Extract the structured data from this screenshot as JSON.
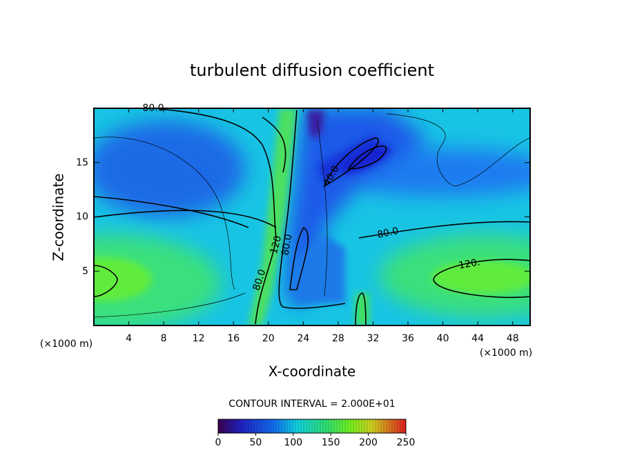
{
  "chart_data": {
    "type": "contour",
    "title": "turbulent diffusion coefficient",
    "x_label": "X-coordinate",
    "y_label": "Z-coordinate",
    "x_unit_labels": [
      "(×1000 m)",
      "(×1000 m)"
    ],
    "xlim": [
      0,
      50
    ],
    "xticks": [
      4,
      8,
      12,
      16,
      20,
      24,
      28,
      32,
      36,
      40,
      44,
      48
    ],
    "ylim": [
      0,
      20
    ],
    "yticks": [
      5,
      10,
      15
    ],
    "contour_labels": [
      {
        "value": 80,
        "label": "80.0"
      },
      {
        "value": 40,
        "label": "40.0"
      },
      {
        "value": 80,
        "label": "80.0"
      },
      {
        "value": 120,
        "label": "120."
      },
      {
        "value": 120,
        "label": "120"
      },
      {
        "value": 80,
        "label": "80.0"
      },
      {
        "value": 80,
        "label": "80.0"
      }
    ],
    "contour_interval_label": "CONTOUR INTERVAL = 2.000E+01",
    "colorbar": {
      "lim": [
        0,
        250
      ],
      "ticks": [
        0,
        50,
        100,
        150,
        200,
        250
      ]
    }
  }
}
